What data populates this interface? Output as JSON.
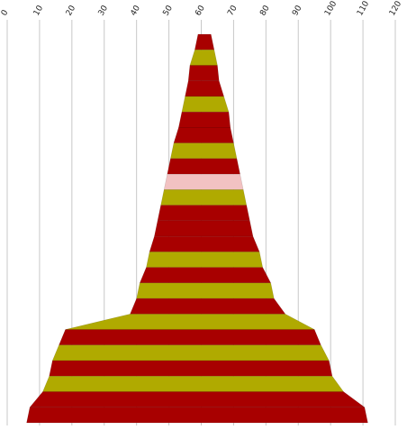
{
  "chart_data": {
    "type": "area",
    "description_free": true,
    "xlim": [
      0,
      120
    ],
    "x_ticks": [
      0,
      10,
      20,
      30,
      40,
      50,
      60,
      70,
      80,
      90,
      100,
      110,
      120
    ],
    "tick_labels": [
      "0",
      "10",
      "20",
      "30",
      "40",
      "50",
      "60",
      "70",
      "80",
      "90",
      "100",
      "110",
      "120"
    ],
    "grid": true,
    "colors": {
      "red": "#a80000",
      "olive": "#b0aa00",
      "pink": "#f2c2c2",
      "grid": "#c8c8c8"
    },
    "bands": [
      {
        "left": 59.0,
        "right": 63.0,
        "color": "red"
      },
      {
        "left": 58.0,
        "right": 64.0,
        "color": "olive"
      },
      {
        "left": 56.5,
        "right": 65.0,
        "color": "red"
      },
      {
        "left": 56.0,
        "right": 65.5,
        "color": "red"
      },
      {
        "left": 55.0,
        "right": 67.0,
        "color": "olive"
      },
      {
        "left": 54.0,
        "right": 68.5,
        "color": "red"
      },
      {
        "left": 53.0,
        "right": 69.0,
        "color": "red"
      },
      {
        "left": 51.5,
        "right": 70.0,
        "color": "olive"
      },
      {
        "left": 50.5,
        "right": 71.0,
        "color": "red"
      },
      {
        "left": 49.5,
        "right": 72.0,
        "color": "pink"
      },
      {
        "left": 48.5,
        "right": 73.0,
        "color": "olive"
      },
      {
        "left": 47.5,
        "right": 74.0,
        "color": "red"
      },
      {
        "left": 46.5,
        "right": 75.0,
        "color": "red"
      },
      {
        "left": 45.5,
        "right": 76.0,
        "color": "red"
      },
      {
        "left": 44.0,
        "right": 78.0,
        "color": "olive"
      },
      {
        "left": 43.0,
        "right": 79.0,
        "color": "red"
      },
      {
        "left": 41.0,
        "right": 81.5,
        "color": "olive"
      },
      {
        "left": 40.0,
        "right": 82.5,
        "color": "red"
      },
      {
        "left": 38.0,
        "right": 86.0,
        "color": "olive"
      },
      {
        "left": 18.0,
        "right": 95.0,
        "color": "red"
      },
      {
        "left": 16.0,
        "right": 97.0,
        "color": "olive"
      },
      {
        "left": 14.0,
        "right": 99.5,
        "color": "red"
      },
      {
        "left": 13.0,
        "right": 100.5,
        "color": "olive"
      },
      {
        "left": 11.0,
        "right": 104.0,
        "color": "red"
      },
      {
        "left": 7.0,
        "right": 110.5,
        "color": "red"
      }
    ]
  }
}
